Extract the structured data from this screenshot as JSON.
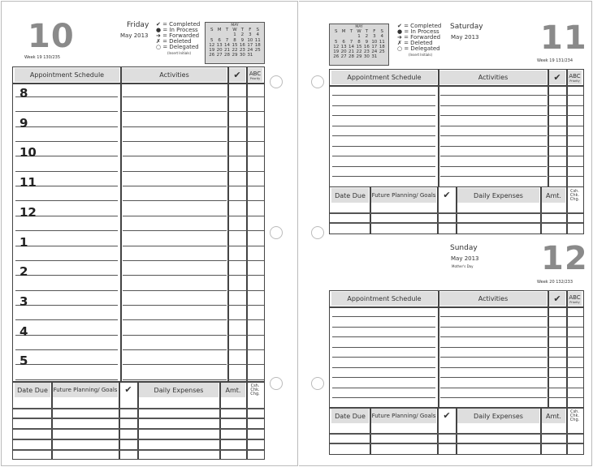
{
  "legend": {
    "completed": "✔ = Completed",
    "in_process": "● = In Process",
    "forwarded": "➜ = Forwarded",
    "deleted": "✗ = Deleted",
    "delegated": "○ = Delegated",
    "delegated_note": "(Insert Initials)"
  },
  "calendar": {
    "month": "MAY",
    "weekdays": [
      "S",
      "M",
      "T",
      "W",
      "T",
      "F",
      "S"
    ],
    "weeks": [
      [
        "",
        "",
        "",
        "1",
        "2",
        "3",
        "4"
      ],
      [
        "5",
        "6",
        "7",
        "8",
        "9",
        "10",
        "11"
      ],
      [
        "12",
        "13",
        "14",
        "15",
        "16",
        "17",
        "18"
      ],
      [
        "19",
        "20",
        "21",
        "22",
        "23",
        "24",
        "25"
      ],
      [
        "26",
        "27",
        "28",
        "29",
        "30",
        "31",
        ""
      ]
    ]
  },
  "headers": {
    "appointment": "Appointment Schedule",
    "activities": "Activities",
    "check": "✔",
    "abc": "ABC",
    "priority": "Priority",
    "date_due": "Date Due",
    "future": "Future Planning/ Goals",
    "expenses": "Daily Expenses",
    "amt": "Amt.",
    "csh": "Csh. Chk. Chg."
  },
  "days": [
    {
      "number": "10",
      "weekday": "Friday",
      "month_year": "May 2013",
      "week": "Week 19  130/235",
      "hours": [
        "8",
        "9",
        "10",
        "11",
        "12",
        "1",
        "2",
        "3",
        "4",
        "5"
      ]
    },
    {
      "number": "11",
      "weekday": "Saturday",
      "month_year": "May 2013",
      "week": "Week 19  131/234"
    },
    {
      "number": "12",
      "weekday": "Sunday",
      "month_year": "May 2013",
      "holiday": "Mother's Day",
      "week": "Week 20  132/233"
    }
  ]
}
